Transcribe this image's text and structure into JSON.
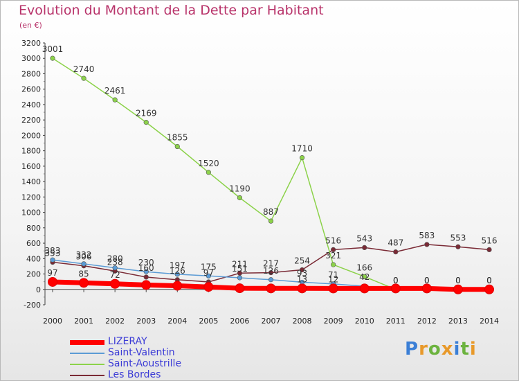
{
  "header": {
    "title": "Evolution du Montant de la Dette par Habitant",
    "subtitle": "(en €)"
  },
  "brand": {
    "letters": [
      "P",
      "r",
      "o",
      "x",
      "i",
      "t",
      "i"
    ],
    "colors": [
      "#3b7fd6",
      "#e8992a",
      "#6cb33f",
      "#e8992a",
      "#3b7fd6",
      "#6cb33f",
      "#e8992a"
    ]
  },
  "chart_data": {
    "type": "line",
    "title": "Evolution du Montant de la Dette par Habitant",
    "subtitle": "(en €)",
    "xlabel": "",
    "ylabel": "",
    "x": [
      "2000",
      "2001",
      "2002",
      "2003",
      "2004",
      "2005",
      "2006",
      "2007",
      "2008",
      "2009",
      "2010",
      "2011",
      "2012",
      "2013",
      "2014"
    ],
    "ylim": [
      -200,
      3200
    ],
    "yticks": [
      -200,
      0,
      200,
      400,
      600,
      800,
      1000,
      1200,
      1400,
      1600,
      1800,
      2000,
      2200,
      2400,
      2600,
      2800,
      3000,
      3200
    ],
    "grid": false,
    "legend_position": "bottom-left",
    "series": [
      {
        "name": "LIZERAY",
        "color": "#ff0000",
        "width": 7,
        "values": [
          97,
          85,
          72,
          57,
          47,
          32,
          15,
          13,
          13,
          12,
          12,
          12,
          12,
          0,
          0
        ],
        "labels": [
          "97",
          "85",
          "72",
          "",
          "",
          "",
          "",
          "",
          "13",
          "12",
          "",
          "",
          "",
          "",
          ""
        ]
      },
      {
        "name": "Saint-Valentin",
        "color": "#5b9bd5",
        "width": 1.5,
        "values": [
          383,
          332,
          280,
          230,
          197,
          175,
          151,
          126,
          93,
          71,
          42,
          0,
          0,
          0,
          0
        ],
        "labels": [
          "383",
          "332",
          "280",
          "230",
          "197",
          "175",
          "151",
          "126",
          "93",
          "71",
          "42",
          "0",
          "0",
          "0",
          "0"
        ]
      },
      {
        "name": "Saint-Aoustrille",
        "color": "#8cd24a",
        "width": 1.5,
        "values": [
          3001,
          2740,
          2461,
          2169,
          1855,
          1520,
          1190,
          887,
          1710,
          321,
          166,
          0,
          0,
          0,
          0
        ],
        "labels": [
          "3001",
          "2740",
          "2461",
          "2169",
          "1855",
          "1520",
          "1190",
          "887",
          "1710",
          "321",
          "166",
          "0",
          "0",
          "0",
          "0"
        ]
      },
      {
        "name": "Les Bordes",
        "color": "#7a2a35",
        "width": 1.5,
        "values": [
          353,
          306,
          238,
          160,
          126,
          97,
          211,
          217,
          254,
          516,
          543,
          487,
          583,
          553,
          516
        ],
        "labels": [
          "353",
          "306",
          "238",
          "160",
          "126",
          "97",
          "211",
          "217",
          "254",
          "516",
          "543",
          "487",
          "583",
          "553",
          "516"
        ]
      }
    ]
  }
}
